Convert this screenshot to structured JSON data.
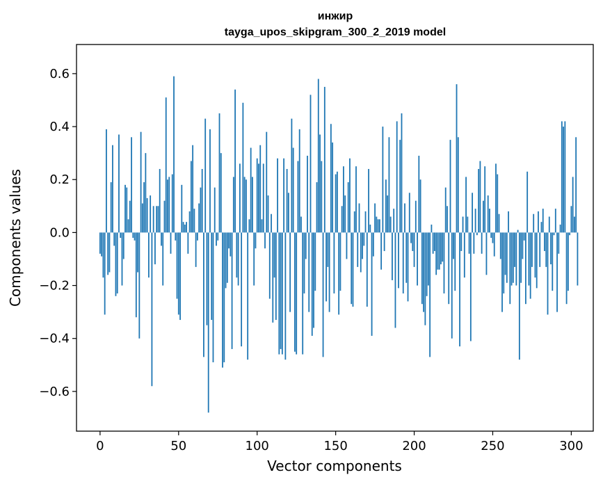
{
  "chart_data": {
    "type": "bar",
    "title": "инжир",
    "subtitle": "tayga_upos_skipgram_300_2_2019 model",
    "xlabel": "Vector components",
    "ylabel": "Components values",
    "xlim": [
      -15,
      314
    ],
    "ylim": [
      -0.75,
      0.71
    ],
    "xticks": [
      0,
      50,
      100,
      150,
      200,
      250,
      300
    ],
    "yticks": [
      -0.6,
      -0.4,
      -0.2,
      0.0,
      0.2,
      0.4,
      0.6
    ],
    "ytick_labels": [
      "−0.6",
      "−0.4",
      "−0.2",
      "0.0",
      "0.2",
      "0.4",
      "0.6"
    ],
    "grid": false,
    "color": "#1f77b4",
    "values": [
      -0.08,
      -0.09,
      -0.17,
      -0.31,
      0.39,
      -0.16,
      -0.15,
      0.19,
      0.33,
      -0.05,
      -0.24,
      -0.23,
      0.37,
      -0.02,
      -0.2,
      -0.1,
      0.18,
      0.17,
      0.05,
      0.12,
      0.36,
      -0.02,
      -0.03,
      -0.32,
      -0.15,
      -0.4,
      0.38,
      0.11,
      0.19,
      0.3,
      0.13,
      -0.17,
      0.14,
      -0.58,
      0.1,
      -0.12,
      0.1,
      0.1,
      0.24,
      -0.05,
      -0.2,
      0.12,
      0.51,
      0.2,
      0.21,
      -0.08,
      0.22,
      0.59,
      -0.03,
      -0.25,
      -0.31,
      -0.33,
      0.18,
      0.04,
      0.03,
      0.04,
      -0.08,
      0.08,
      0.27,
      0.33,
      0.09,
      -0.13,
      -0.03,
      0.11,
      0.17,
      0.24,
      -0.47,
      0.43,
      -0.35,
      -0.68,
      0.39,
      -0.33,
      -0.49,
      0.17,
      -0.05,
      -0.03,
      0.45,
      0.3,
      -0.51,
      -0.49,
      -0.21,
      -0.19,
      -0.06,
      -0.09,
      -0.44,
      0.21,
      0.54,
      -0.17,
      -0.2,
      0.26,
      -0.43,
      0.49,
      0.21,
      0.2,
      -0.48,
      0.05,
      0.32,
      0.21,
      -0.2,
      -0.06,
      0.28,
      0.26,
      0.33,
      0.05,
      0.26,
      -0.06,
      0.38,
      0.14,
      -0.25,
      0.07,
      -0.34,
      -0.17,
      -0.33,
      0.28,
      -0.46,
      -0.44,
      -0.46,
      0.28,
      -0.48,
      0.24,
      0.15,
      -0.3,
      0.43,
      0.32,
      -0.45,
      -0.46,
      0.27,
      0.39,
      0.06,
      -0.46,
      -0.23,
      -0.1,
      0.29,
      -0.3,
      0.52,
      -0.39,
      -0.36,
      -0.22,
      0.19,
      0.58,
      0.37,
      0.27,
      -0.47,
      0.55,
      -0.26,
      -0.13,
      -0.3,
      0.41,
      0.34,
      -0.23,
      0.22,
      0.23,
      -0.31,
      -0.22,
      0.1,
      0.25,
      0.14,
      -0.1,
      0.19,
      0.28,
      -0.27,
      -0.28,
      0.08,
      0.25,
      -0.13,
      0.11,
      -0.15,
      -0.1,
      -0.05,
      0.08,
      -0.28,
      0.24,
      0.03,
      -0.39,
      -0.09,
      0.11,
      0.06,
      0.05,
      0.05,
      -0.14,
      0.4,
      -0.07,
      0.2,
      0.14,
      0.36,
      0.06,
      -0.18,
      0.09,
      -0.36,
      0.42,
      -0.21,
      0.35,
      0.45,
      -0.23,
      0.11,
      -0.19,
      -0.26,
      0.15,
      -0.04,
      -0.07,
      -0.13,
      0.12,
      -0.2,
      0.29,
      0.2,
      -0.27,
      -0.3,
      -0.35,
      -0.24,
      -0.2,
      -0.47,
      0.03,
      -0.08,
      -0.07,
      -0.16,
      -0.14,
      -0.14,
      -0.12,
      -0.11,
      -0.23,
      0.17,
      0.1,
      -0.27,
      0.35,
      -0.4,
      -0.1,
      -0.22,
      0.56,
      0.36,
      -0.43,
      -0.07,
      0.06,
      -0.17,
      0.21,
      0.06,
      -0.08,
      -0.41,
      0.15,
      -0.08,
      0.09,
      -0.01,
      0.24,
      0.27,
      -0.08,
      0.12,
      0.25,
      -0.16,
      0.14,
      0.09,
      -0.02,
      -0.04,
      -0.09,
      0.26,
      0.22,
      0.07,
      -0.1,
      -0.3,
      -0.23,
      -0.16,
      -0.19,
      0.08,
      -0.27,
      -0.2,
      -0.19,
      -0.13,
      -0.2,
      0.01,
      -0.48,
      -0.19,
      -0.1,
      -0.03,
      -0.27,
      0.23,
      -0.2,
      -0.25,
      -0.13,
      0.07,
      -0.17,
      -0.21,
      0.08,
      -0.13,
      0.04,
      0.09,
      -0.07,
      -0.13,
      -0.31,
      0.06,
      -0.12,
      -0.22,
      -0.01,
      0.09,
      -0.3,
      -0.08,
      0.03,
      0.42,
      0.4,
      0.42,
      -0.27,
      -0.22,
      -0.01,
      0.1,
      0.21,
      0.06,
      0.36,
      -0.2
    ]
  }
}
